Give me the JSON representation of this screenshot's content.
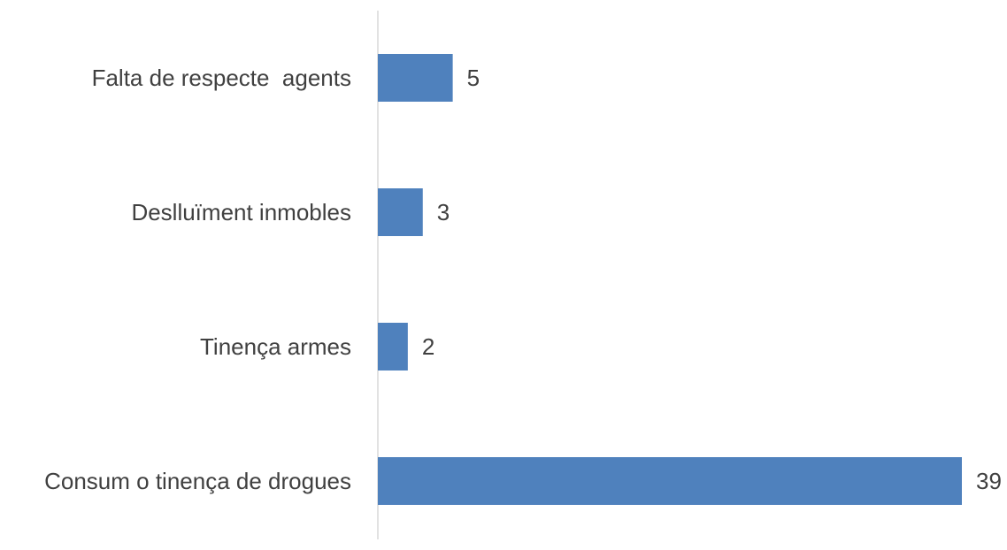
{
  "chart_data": {
    "type": "bar",
    "orientation": "horizontal",
    "title": "",
    "xlabel": "",
    "ylabel": "",
    "categories": [
      "Falta de respecte  agents",
      "Deslluïment inmobles",
      "Tinença armes",
      "Consum o tinença de drogues"
    ],
    "values": [
      5,
      3,
      2,
      39
    ],
    "data_labels": [
      "5",
      "3",
      "2",
      "39"
    ],
    "xlim": [
      0,
      39
    ],
    "grid": false,
    "legend": "none",
    "bar_color": "#4f81bd",
    "axis_color": "#d9d9d9",
    "text_color": "#404040"
  }
}
